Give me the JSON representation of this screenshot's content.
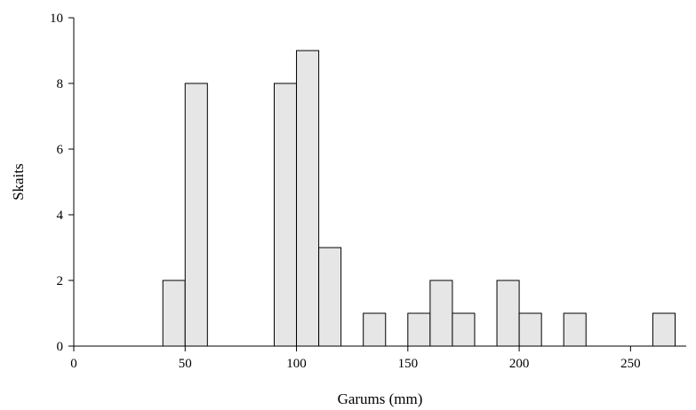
{
  "chart_data": {
    "type": "bar",
    "title": "",
    "xlabel": "Garums (mm)",
    "ylabel": "Skaits",
    "xlim": [
      0,
      275
    ],
    "ylim": [
      0,
      10
    ],
    "x_ticks": [
      0,
      50,
      100,
      150,
      200,
      250
    ],
    "y_ticks": [
      0,
      2,
      4,
      6,
      8,
      10
    ],
    "bin_width": 10,
    "bins": [
      {
        "x0": 40,
        "x1": 50,
        "count": 2
      },
      {
        "x0": 50,
        "x1": 60,
        "count": 8
      },
      {
        "x0": 90,
        "x1": 100,
        "count": 8
      },
      {
        "x0": 100,
        "x1": 110,
        "count": 9
      },
      {
        "x0": 110,
        "x1": 120,
        "count": 3
      },
      {
        "x0": 130,
        "x1": 140,
        "count": 1
      },
      {
        "x0": 150,
        "x1": 160,
        "count": 1
      },
      {
        "x0": 160,
        "x1": 170,
        "count": 2
      },
      {
        "x0": 170,
        "x1": 180,
        "count": 1
      },
      {
        "x0": 190,
        "x1": 200,
        "count": 2
      },
      {
        "x0": 200,
        "x1": 210,
        "count": 1
      },
      {
        "x0": 220,
        "x1": 230,
        "count": 1
      },
      {
        "x0": 260,
        "x1": 270,
        "count": 1
      }
    ],
    "grid": false,
    "colors": {
      "bar_fill": "#e6e6e6",
      "bar_stroke": "#000000"
    }
  }
}
